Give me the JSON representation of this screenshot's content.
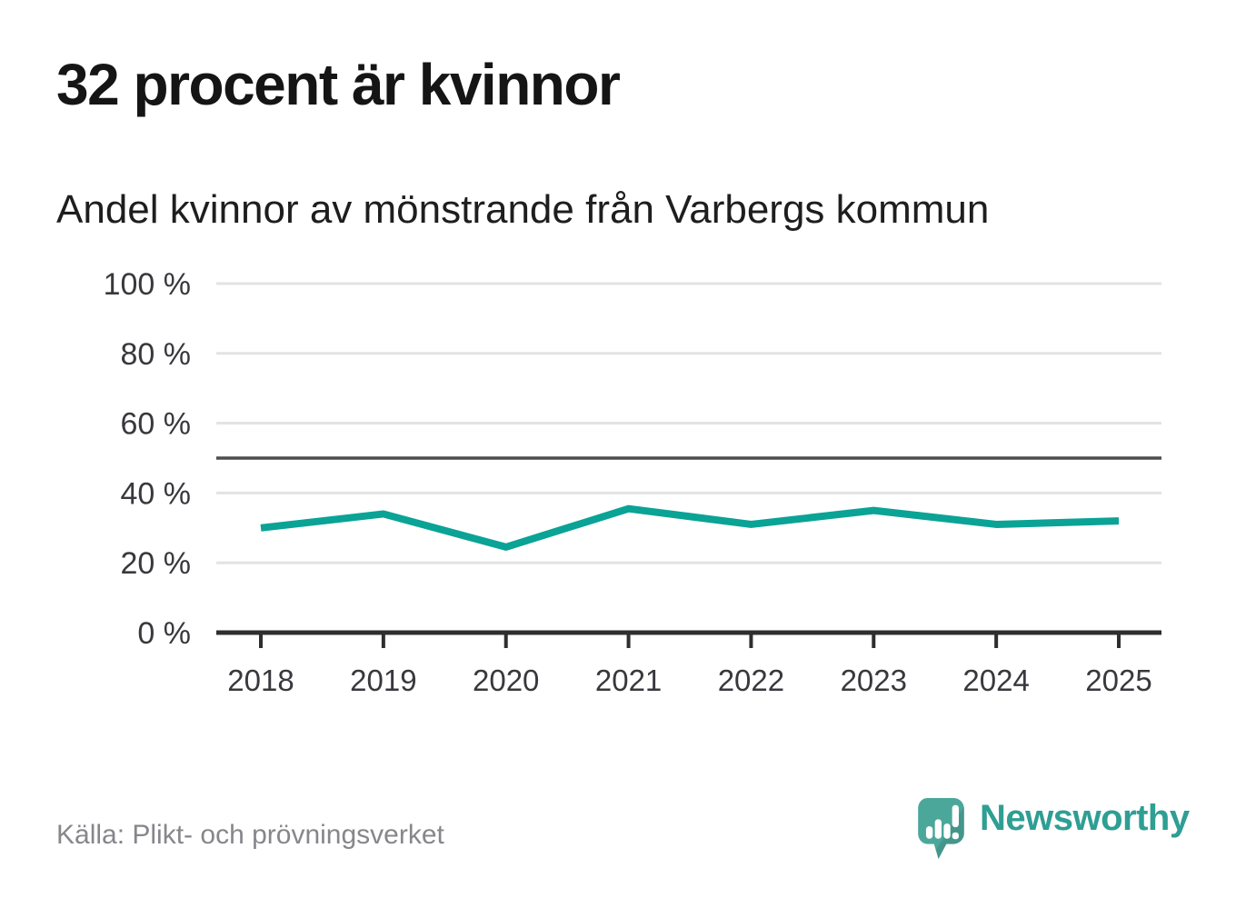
{
  "page": {
    "title": "32 procent är kvinnor",
    "subtitle": "Andel kvinnor av mönstrande från Varbergs kommun",
    "source": "Källa: Plikt- och prövningsverket",
    "brand": "Newsworthy"
  },
  "colors": {
    "line": "#0aa396",
    "grid": "#e3e3e3",
    "reference_line": "#4d4d4d",
    "axis": "#2e2e2e",
    "axis_label": "#38383d",
    "source_text": "#86868b",
    "brand_teal": "#2f9e93",
    "logo_bubble": "#4ca79b"
  },
  "chart_data": {
    "type": "line",
    "title": "32 procent är kvinnor",
    "subtitle": "Andel kvinnor av mönstrande från Varbergs kommun",
    "categories": [
      "2018",
      "2019",
      "2020",
      "2021",
      "2022",
      "2023",
      "2024",
      "2025"
    ],
    "values": [
      30,
      34,
      24.5,
      35.5,
      31,
      35,
      31,
      32
    ],
    "unit": "%",
    "ylim": [
      0,
      100
    ],
    "yticks": [
      0,
      20,
      40,
      60,
      80,
      100
    ],
    "ytick_suffix": " %",
    "reference_line_y": 50,
    "grid": true,
    "legend": "none",
    "source": "Källa: Plikt- och prövningsverket"
  }
}
